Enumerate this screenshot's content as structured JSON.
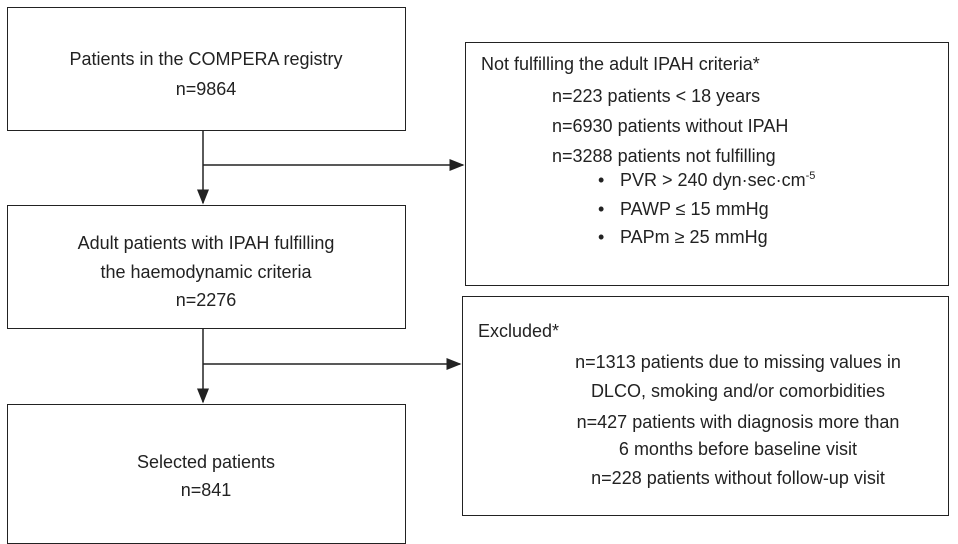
{
  "nodes": [
    {
      "lines": [
        "Patients in the COMPERA registry",
        "n=9864"
      ]
    },
    {
      "title": "Not fulfilling the adult IPAH criteria*",
      "lines": [
        "n=223 patients < 18 years",
        "n=6930 patients without IPAH",
        "n=3288 patients not fulfilling"
      ],
      "bullets": [
        {
          "text": "PVR > 240 dyn·sec·cm",
          "sup": "-5"
        },
        {
          "text": "PAWP ≤ 15 mmHg"
        },
        {
          "text": "PAPm ≥ 25 mmHg"
        }
      ]
    },
    {
      "lines": [
        "Adult patients with IPAH fulfilling",
        "the haemodynamic criteria",
        "n=2276"
      ]
    },
    {
      "title": "Excluded*",
      "lines": [
        "n=1313 patients due to missing values in",
        "DLCO, smoking and/or comorbidities",
        "n=427 patients with diagnosis more than",
        "6 months before baseline visit",
        "n=228 patients without follow-up visit"
      ]
    },
    {
      "lines": [
        "Selected patients",
        "n=841"
      ]
    }
  ]
}
